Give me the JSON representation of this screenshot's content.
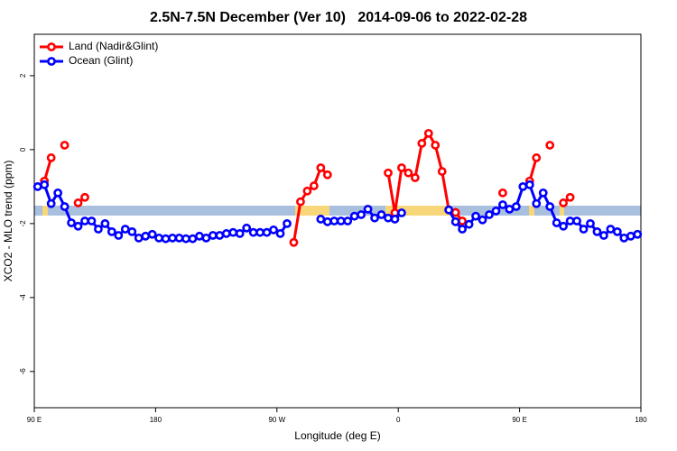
{
  "chart_data": {
    "type": "line",
    "title": "2.5N-7.5N December (Ver 10)   2014-09-06 to 2022-02-28",
    "x_label": "Longitude (deg E)",
    "y_label": "XCO2 - MLO trend (ppm)",
    "xlim": [
      90,
      540
    ],
    "xticks": [
      {
        "value": 90,
        "label": "90 E"
      },
      180,
      {
        "value": 270,
        "label": "90 W"
      },
      {
        "value": 360,
        "label": "0"
      },
      {
        "value": 450,
        "label": "90 E"
      },
      {
        "value": 540,
        "label": "180"
      }
    ],
    "ylim": [
      -6.98,
      3.12
    ],
    "yticks": [
      2,
      0,
      -2,
      -4,
      -6
    ],
    "legend": "top-left",
    "x": [
      92.5,
      97.5,
      102.5,
      107.5,
      112.5,
      117.5,
      122.5,
      127.5,
      132.5,
      137.5,
      142.5,
      147.5,
      152.5,
      157.5,
      162.5,
      167.5,
      172.5,
      177.5,
      182.5,
      187.5,
      192.5,
      197.5,
      202.5,
      207.5,
      212.5,
      217.5,
      222.5,
      227.5,
      232.5,
      237.5,
      242.5,
      247.5,
      252.5,
      257.5,
      262.5,
      267.5,
      272.5,
      277.5,
      282.5,
      287.5,
      292.5,
      297.5,
      302.5,
      307.5,
      312.5,
      317.5,
      322.5,
      327.5,
      332.5,
      337.5,
      342.5,
      347.5,
      352.5,
      357.5,
      362.5,
      367.5,
      372.5,
      377.5,
      382.5,
      387.5,
      392.5,
      397.5,
      402.5,
      407.5,
      412.5,
      417.5,
      422.5,
      427.5,
      432.5,
      437.5,
      442.5,
      447.5,
      452.5,
      457.5,
      462.5,
      467.5,
      472.5,
      477.5,
      482.5,
      487.5,
      492.5,
      497.5,
      502.5,
      507.5,
      512.5,
      517.5,
      522.5,
      527.5,
      532.5,
      537.5
    ],
    "series": [
      {
        "name": "Land (Nadir&Glint)",
        "color": "#ff0000",
        "values": [
          null,
          -0.85,
          -0.22,
          null,
          0.12,
          null,
          -1.44,
          -1.29,
          null,
          null,
          null,
          null,
          null,
          null,
          null,
          null,
          null,
          null,
          null,
          null,
          null,
          null,
          null,
          null,
          null,
          null,
          null,
          null,
          null,
          null,
          null,
          null,
          null,
          null,
          null,
          null,
          null,
          null,
          -2.51,
          -1.41,
          -1.12,
          -0.98,
          -0.49,
          -0.68,
          null,
          null,
          null,
          null,
          null,
          null,
          null,
          null,
          -0.63,
          -1.71,
          -0.49,
          -0.63,
          -0.76,
          0.17,
          0.44,
          0.12,
          -0.59,
          -1.63,
          -1.7,
          -1.93,
          null,
          null,
          null,
          null,
          null,
          -1.17,
          null,
          null,
          null,
          -0.85,
          -0.22,
          null,
          0.12,
          null,
          -1.44,
          -1.29,
          null,
          null,
          null,
          null,
          null,
          null,
          null,
          null,
          null,
          null
        ]
      },
      {
        "name": "Ocean (Glint)",
        "color": "#0000ff",
        "values": [
          -1.0,
          -0.95,
          -1.46,
          -1.17,
          -1.54,
          -1.98,
          -2.07,
          -1.93,
          -1.93,
          -2.15,
          -2.0,
          -2.22,
          -2.32,
          -2.15,
          -2.22,
          -2.39,
          -2.34,
          -2.29,
          -2.39,
          -2.41,
          -2.39,
          -2.39,
          -2.41,
          -2.41,
          -2.34,
          -2.39,
          -2.32,
          -2.32,
          -2.27,
          -2.24,
          -2.27,
          -2.12,
          -2.24,
          -2.24,
          -2.24,
          -2.17,
          -2.27,
          -2.0,
          null,
          null,
          null,
          null,
          -1.88,
          -1.95,
          -1.93,
          -1.93,
          -1.93,
          -1.8,
          -1.76,
          -1.61,
          -1.85,
          -1.76,
          -1.85,
          -1.88,
          -1.71,
          null,
          null,
          null,
          null,
          null,
          null,
          -1.63,
          -1.95,
          -2.15,
          -2.02,
          -1.8,
          -1.9,
          -1.76,
          -1.66,
          -1.49,
          -1.61,
          -1.54,
          -1.0,
          -0.95,
          -1.46,
          -1.17,
          -1.54,
          -1.98,
          -2.07,
          -1.93,
          -1.93,
          -2.15,
          -2.0,
          -2.22,
          -2.32,
          -2.15,
          -2.22,
          -2.39,
          -2.34,
          -2.29
        ]
      }
    ]
  }
}
